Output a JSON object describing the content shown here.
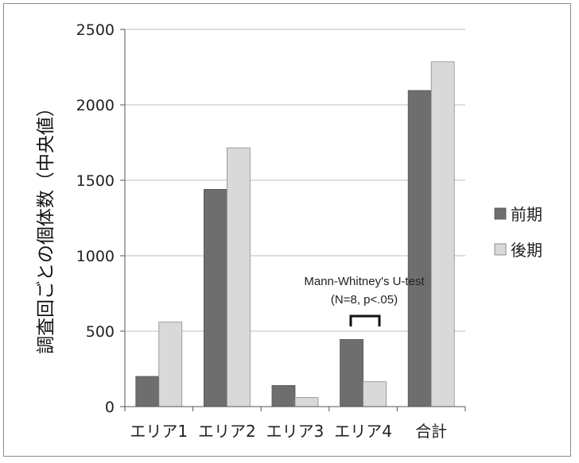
{
  "chart_data": {
    "type": "bar",
    "ylabel": "調査回ごとの個体数（中央値）",
    "ylim": [
      0,
      2500
    ],
    "yticks": [
      0,
      500,
      1000,
      1500,
      2000,
      2500
    ],
    "ytick_labels": [
      "0",
      "500",
      "1000",
      "1500",
      "2000",
      "2500"
    ],
    "categories": [
      "エリア1",
      "エリア2",
      "エリア3",
      "エリア4",
      "合計"
    ],
    "series": [
      {
        "name": "前期",
        "color": "#6e6e6e",
        "values": [
          200,
          1440,
          140,
          445,
          2095
        ]
      },
      {
        "name": "後期",
        "color": "#d9d9d9",
        "values": [
          560,
          1715,
          60,
          165,
          2285
        ]
      }
    ],
    "grid": true,
    "legend_position": "right",
    "annotation": {
      "line1": "Mann-Whitney's U-test",
      "line2": "(N=8, p<.05)",
      "category": "エリア4"
    }
  }
}
